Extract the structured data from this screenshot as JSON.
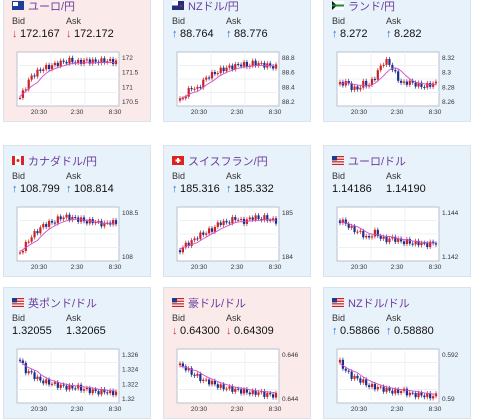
{
  "cards": [
    {
      "pair": "ユーロ/円",
      "flag": "eu",
      "trend": "down",
      "bid_arrow": "↓",
      "bid": "172.167",
      "ask_arrow": "↓",
      "ask": "172.172",
      "bid_label": "Bid",
      "ask_label": "Ask",
      "ylabels": [
        "172",
        "171.5",
        "171",
        "170.5"
      ],
      "xlabels": [
        "20:30",
        "2:30",
        "8:30"
      ]
    },
    {
      "pair": "NZドル/円",
      "flag": "nz",
      "trend": "up",
      "bid_arrow": "↑",
      "bid": "88.764",
      "ask_arrow": "↑",
      "ask": "88.776",
      "bid_label": "Bid",
      "ask_label": "Ask",
      "ylabels": [
        "88.8",
        "88.6",
        "88.4",
        "88.2"
      ],
      "xlabels": [
        "20:30",
        "2:30",
        "8:30"
      ]
    },
    {
      "pair": "ランド/円",
      "flag": "za",
      "trend": "up",
      "bid_arrow": "↑",
      "bid": "8.272",
      "ask_arrow": "↑",
      "ask": "8.282",
      "bid_label": "Bid",
      "ask_label": "Ask",
      "ylabels": [
        "8.32",
        "8.3",
        "8.28",
        "8.26"
      ],
      "xlabels": [
        "20:30",
        "2:30",
        "8:30"
      ]
    },
    {
      "pair": "カナダドル/円",
      "flag": "ca",
      "trend": "up",
      "bid_arrow": "↑",
      "bid": "108.799",
      "ask_arrow": "↑",
      "ask": "108.814",
      "bid_label": "Bid",
      "ask_label": "Ask",
      "ylabels": [
        "108.5",
        "108"
      ],
      "xlabels": [
        "20:30",
        "2:30",
        "8:30"
      ]
    },
    {
      "pair": "スイスフラン/円",
      "flag": "ch",
      "trend": "up",
      "bid_arrow": "↑",
      "bid": "185.316",
      "ask_arrow": "↑",
      "ask": "185.332",
      "bid_label": "Bid",
      "ask_label": "Ask",
      "ylabels": [
        "185",
        "184"
      ],
      "xlabels": [
        "20:30",
        "2:30",
        "8:30"
      ]
    },
    {
      "pair": "ユーロ/ドル",
      "flag": "us",
      "trend": "up",
      "bid_arrow": "",
      "bid": "1.14186",
      "ask_arrow": "",
      "ask": "1.14190",
      "bid_label": "Bid",
      "ask_label": "Ask",
      "ylabels": [
        "1.144",
        "1.142"
      ],
      "xlabels": [
        "20:30",
        "2:30",
        "8:30"
      ]
    },
    {
      "pair": "英ポンド/ドル",
      "flag": "us",
      "trend": "up",
      "bid_arrow": "",
      "bid": "1.32055",
      "ask_arrow": "",
      "ask": "1.32065",
      "bid_label": "Bid",
      "ask_label": "Ask",
      "ylabels": [
        "1.326",
        "1.324",
        "1.322",
        "1.32"
      ],
      "xlabels": [
        "20:30",
        "2:30",
        "8:30"
      ]
    },
    {
      "pair": "豪ドル/ドル",
      "flag": "us",
      "trend": "down",
      "bid_arrow": "↓",
      "bid": "0.64300",
      "ask_arrow": "↓",
      "ask": "0.64309",
      "bid_label": "Bid",
      "ask_label": "Ask",
      "ylabels": [
        "0.646",
        "0.644"
      ],
      "xlabels": [
        "20:30",
        "2:30",
        "8:30"
      ]
    },
    {
      "pair": "NZドル/ドル",
      "flag": "us",
      "trend": "up",
      "bid_arrow": "↑",
      "bid": "0.58866",
      "ask_arrow": "↑",
      "ask": "0.58880",
      "bid_label": "Bid",
      "ask_label": "Ask",
      "ylabels": [
        "0.592",
        "0.59"
      ],
      "xlabels": [
        "20:30",
        "2:30",
        "8:30"
      ]
    }
  ],
  "colors": {
    "up_card": "#e8f2fb",
    "down_card": "#fbeaea",
    "candle_up": "#cc2222",
    "candle_down": "#1a2e8a",
    "ma_line": "#d24cd0",
    "pair_text": "#6a3c9c"
  }
}
